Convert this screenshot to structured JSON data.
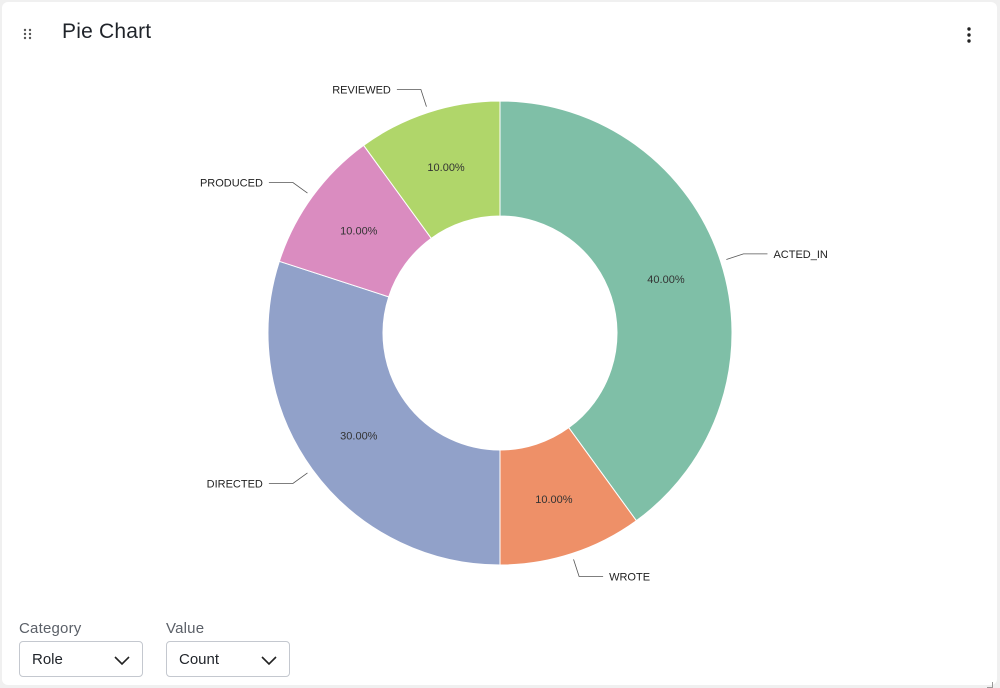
{
  "header": {
    "title": "Pie Chart"
  },
  "controls": {
    "category": {
      "label": "Category",
      "value": "Role"
    },
    "value": {
      "label": "Value",
      "value": "Count"
    }
  },
  "colors": {
    "ACTED_IN": "#7fbfa7",
    "WROTE": "#ee9068",
    "DIRECTED": "#91a1c9",
    "PRODUCED": "#da8cc0",
    "REVIEWED": "#b0d66a"
  },
  "chart_data": {
    "type": "pie",
    "donut": true,
    "title": "",
    "slices": [
      {
        "label": "ACTED_IN",
        "value": 40,
        "percent_label": "40.00%"
      },
      {
        "label": "WROTE",
        "value": 10,
        "percent_label": "10.00%"
      },
      {
        "label": "DIRECTED",
        "value": 30,
        "percent_label": "30.00%"
      },
      {
        "label": "PRODUCED",
        "value": 10,
        "percent_label": "10.00%"
      },
      {
        "label": "REVIEWED",
        "value": 10,
        "percent_label": "10.00%"
      }
    ]
  }
}
